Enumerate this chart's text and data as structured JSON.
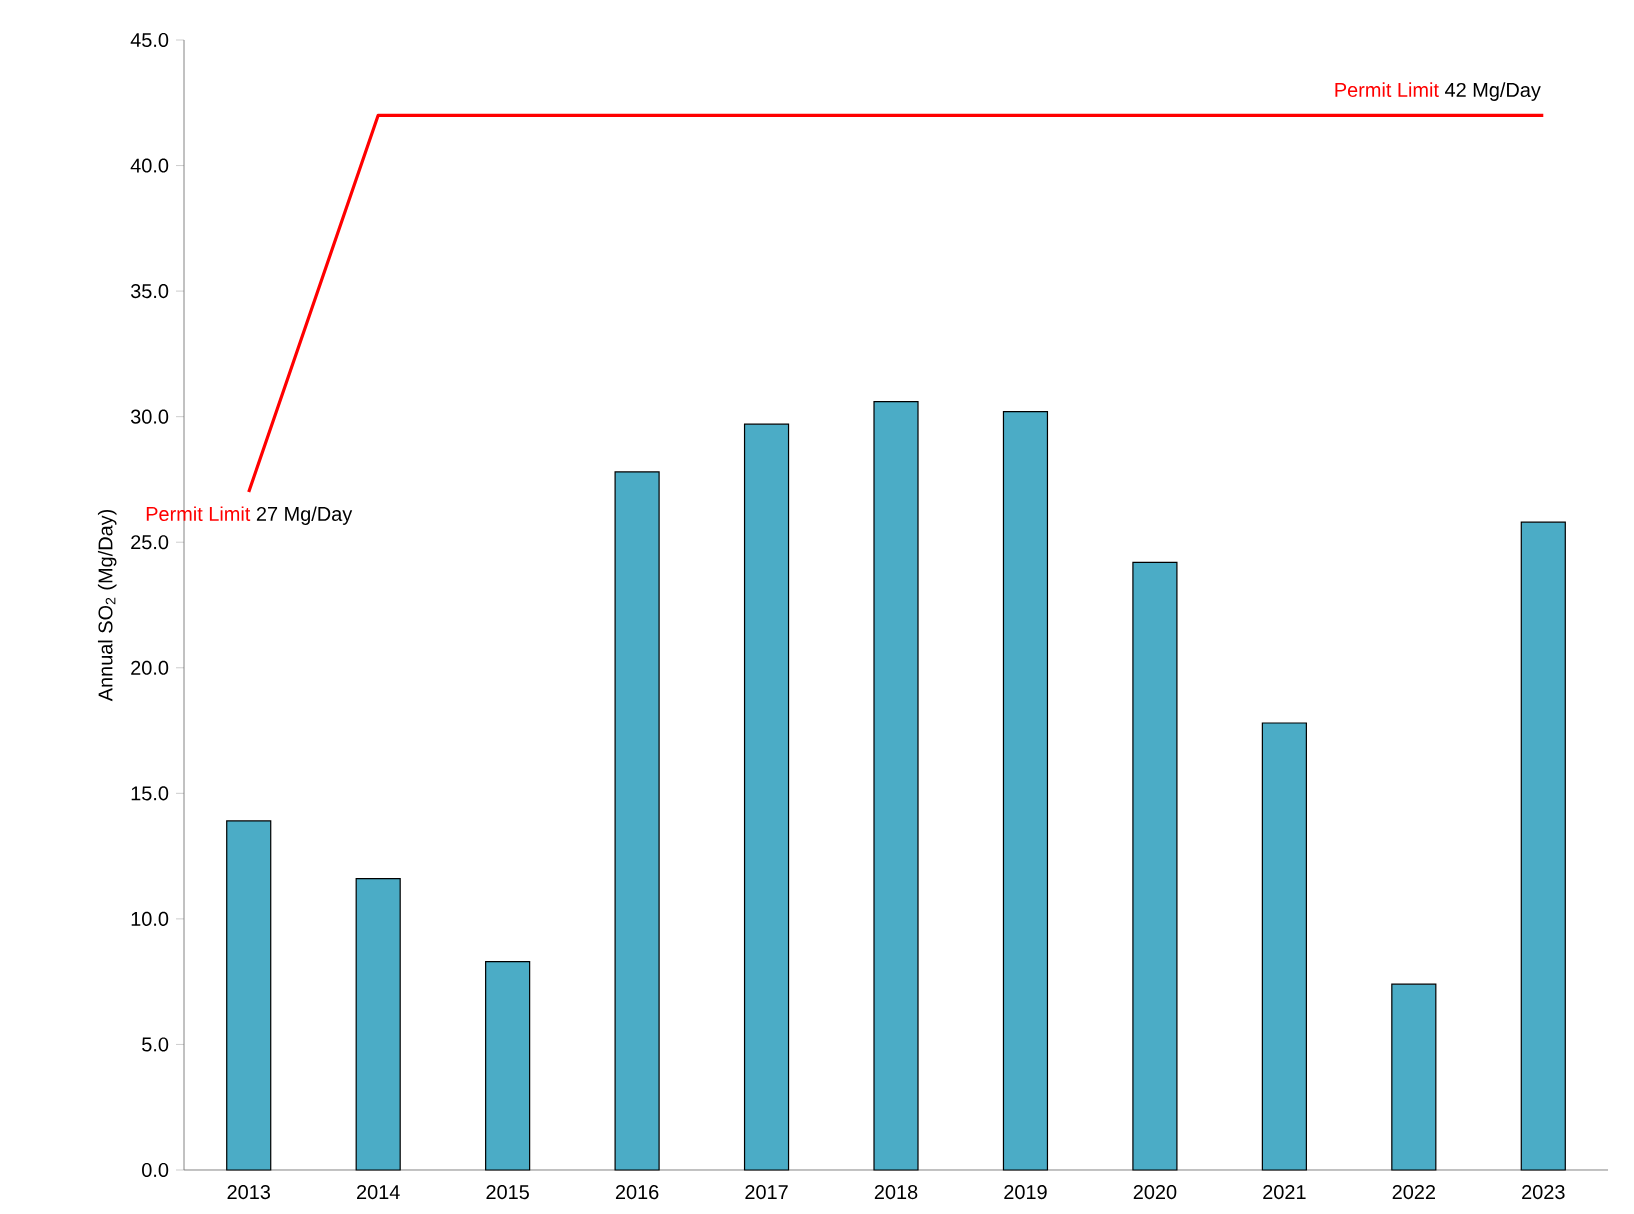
{
  "chart_data": {
    "type": "bar",
    "ylabel": "Annual SO$_{2}$  (Mg/Day)",
    "categories": [
      "2013",
      "2014",
      "2015",
      "2016",
      "2017",
      "2018",
      "2019",
      "2020",
      "2021",
      "2022",
      "2023"
    ],
    "ylim": [
      0,
      45
    ],
    "yticks": [
      {
        "value": 0,
        "label": "0.0"
      },
      {
        "value": 5,
        "label": "5.0"
      },
      {
        "value": 10,
        "label": "10.0"
      },
      {
        "value": 15,
        "label": "15.0"
      },
      {
        "value": 20,
        "label": "20.0"
      },
      {
        "value": 25,
        "label": "25.0"
      },
      {
        "value": 30,
        "label": "30.0"
      },
      {
        "value": 35,
        "label": "35.0"
      },
      {
        "value": 40,
        "label": "40.0"
      },
      {
        "value": 45,
        "label": "45.0"
      }
    ],
    "grid": false,
    "series": [
      {
        "color": "#4bacc6",
        "values": [
          13.9,
          11.6,
          8.3,
          27.8,
          29.7,
          30.6,
          30.2,
          24.2,
          17.8,
          7.4,
          25.8
        ]
      },
      {
        "type": "line",
        "name": "Permit Limit",
        "color": "#ff0000",
        "values": [
          27,
          42,
          42,
          42,
          42,
          42,
          42,
          42,
          42,
          42,
          42
        ]
      }
    ],
    "annotations": [
      {
        "text": "27 Mg/Day",
        "x": "2013",
        "y": 27
      },
      {
        "text": "42 Mg/Day",
        "x": "2023",
        "y": 42
      }
    ]
  }
}
